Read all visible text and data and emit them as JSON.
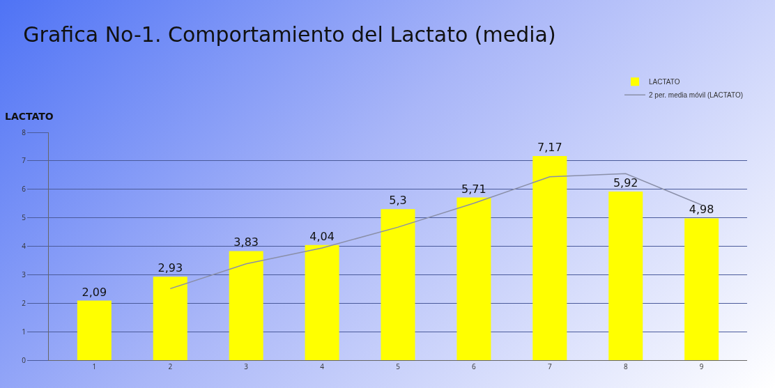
{
  "chart_data": {
    "type": "bar",
    "title": "Grafica No-1. Comportamiento del Lactato (media)",
    "ylabel": "LACTATO",
    "categories": [
      "1",
      "2",
      "3",
      "4",
      "5",
      "6",
      "7",
      "8",
      "9"
    ],
    "series": [
      {
        "name": "LACTATO",
        "color": "#ffff00",
        "values": [
          2.09,
          2.93,
          3.83,
          4.04,
          5.3,
          5.71,
          7.17,
          5.92,
          4.98
        ],
        "value_labels": [
          "2,09",
          "2,93",
          "3,83",
          "4,04",
          "5,3",
          "5,71",
          "7,17",
          "5,92",
          "4,98"
        ]
      },
      {
        "name": "2 per. media móvil (LACTATO)",
        "type": "line",
        "color": "#8a8fa8",
        "values": [
          null,
          2.51,
          3.38,
          3.94,
          4.67,
          5.51,
          6.44,
          6.55,
          5.45
        ]
      }
    ],
    "ylim": [
      0,
      8
    ],
    "yticks": [
      0,
      1,
      2,
      3,
      4,
      5,
      6,
      7,
      8
    ],
    "grid": "y",
    "legend": "top right"
  }
}
